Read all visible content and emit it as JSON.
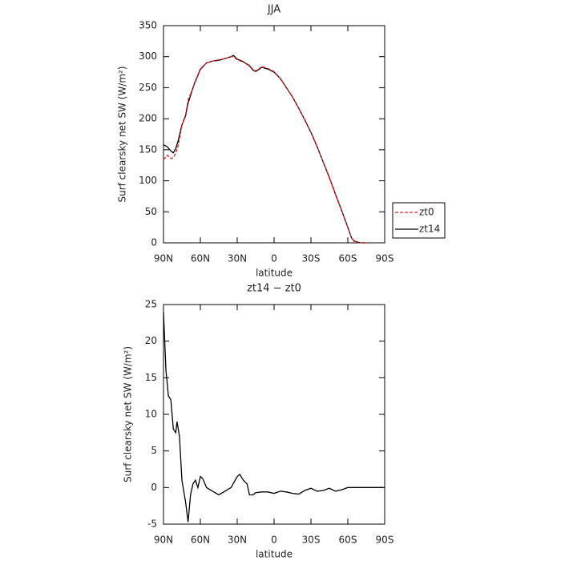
{
  "chart_data": [
    {
      "type": "line",
      "title": "JJA",
      "xlabel": "latitude",
      "ylabel": "Surf clearsky net SW (W/m²)",
      "x": [
        90,
        87,
        84,
        82,
        80,
        78,
        75,
        72,
        70,
        65,
        60,
        55,
        50,
        45,
        40,
        35,
        33,
        30,
        25,
        20,
        17,
        15,
        12,
        10,
        5,
        0,
        -5,
        -10,
        -15,
        -20,
        -25,
        -30,
        -35,
        -40,
        -45,
        -50,
        -55,
        -60,
        -63,
        -65,
        -70,
        -75
      ],
      "series": [
        {
          "name": "zt0",
          "color": "#e02020",
          "dash": true,
          "values": [
            134,
            141,
            136,
            137,
            145,
            157,
            189,
            207,
            230,
            255,
            279,
            290,
            293,
            295,
            297,
            300,
            300,
            295,
            291,
            286,
            279,
            277,
            281,
            284,
            281,
            276,
            265,
            250,
            235,
            217,
            198,
            178,
            155,
            130,
            105,
            78,
            52,
            25,
            8,
            3,
            0,
            0
          ]
        },
        {
          "name": "zt14",
          "color": "#000000",
          "dash": false,
          "values": [
            158,
            155,
            148,
            145,
            152,
            165,
            190,
            205,
            225,
            256,
            280,
            290,
            293,
            294,
            297,
            300,
            302,
            296,
            292,
            285,
            278,
            276,
            280,
            283,
            280,
            275,
            265,
            250,
            235,
            217,
            198,
            178,
            155,
            130,
            105,
            78,
            52,
            25,
            8,
            3,
            0,
            0
          ]
        }
      ],
      "xlim": [
        90,
        -90
      ],
      "ylim": [
        0,
        350
      ],
      "xticks": [
        {
          "value": 90,
          "label": "90N"
        },
        {
          "value": 60,
          "label": "60N"
        },
        {
          "value": 30,
          "label": "30N"
        },
        0,
        {
          "value": -30,
          "label": "30S"
        },
        {
          "value": -60,
          "label": "60S"
        },
        {
          "value": -90,
          "label": "90S"
        }
      ],
      "yticks": [
        0,
        50,
        100,
        150,
        200,
        250,
        300,
        350
      ],
      "legend": "right"
    },
    {
      "type": "line",
      "title": "zt14 − zt0",
      "xlabel": "latitude",
      "ylabel": "Surf clearsky net SW (W/m²)",
      "x": [
        90,
        88,
        86,
        84,
        82,
        80,
        79,
        77,
        75,
        72,
        70,
        68,
        66,
        64,
        62,
        60,
        58,
        55,
        50,
        45,
        40,
        35,
        30,
        28,
        25,
        22,
        20,
        17,
        15,
        10,
        5,
        0,
        -5,
        -10,
        -15,
        -20,
        -25,
        -30,
        -35,
        -40,
        -45,
        -50,
        -55,
        -60,
        -65,
        -70,
        -80,
        -90
      ],
      "series": [
        {
          "name": "zt14 − zt0",
          "color": "#000000",
          "dash": false,
          "values": [
            24,
            16,
            12.5,
            12,
            8,
            7.5,
            9,
            7,
            1,
            -2,
            -4.7,
            -1,
            0.5,
            1,
            0,
            1.5,
            1.2,
            0,
            -0.5,
            -1,
            -0.5,
            0,
            1.5,
            1.8,
            1,
            0.5,
            -1,
            -1,
            -0.7,
            -0.6,
            -0.6,
            -0.8,
            -0.5,
            -0.6,
            -0.8,
            -0.9,
            -0.4,
            -0.1,
            -0.5,
            -0.4,
            -0.1,
            -0.5,
            -0.3,
            0,
            0,
            0,
            0,
            0
          ]
        }
      ],
      "xlim": [
        90,
        -90
      ],
      "ylim": [
        -5,
        25
      ],
      "xticks": [
        {
          "value": 90,
          "label": "90N"
        },
        {
          "value": 60,
          "label": "60N"
        },
        {
          "value": 30,
          "label": "30N"
        },
        0,
        {
          "value": -30,
          "label": "30S"
        },
        {
          "value": -60,
          "label": "60S"
        },
        {
          "value": -90,
          "label": "90S"
        }
      ],
      "yticks": [
        -5,
        0,
        5,
        10,
        15,
        20,
        25
      ]
    }
  ]
}
